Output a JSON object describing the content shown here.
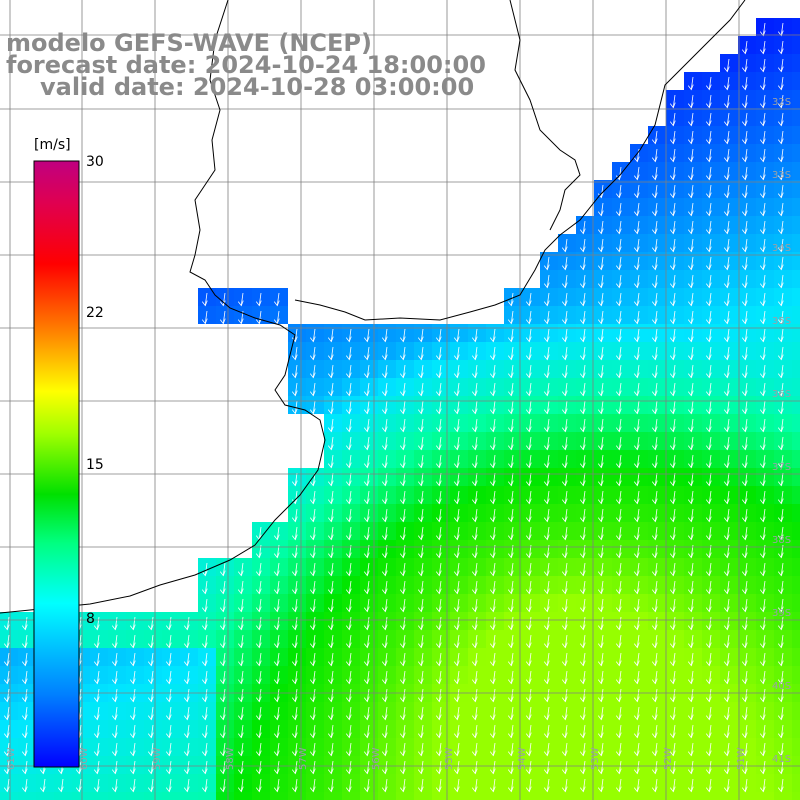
{
  "title": {
    "line1": "modelo GEFS-WAVE (NCEP)",
    "line2": "forecast date: 2024-10-24 18:00:00",
    "line3": "valid date: 2024-10-28 03:00:00"
  },
  "colorbar": {
    "unit": "[m/s]",
    "ticks": [
      "30",
      "22",
      "15",
      "8"
    ],
    "range": [
      0,
      30
    ],
    "stops": [
      "#0000ff",
      "#00a0ff",
      "#00ffff",
      "#00ff80",
      "#00ff00",
      "#80ff00",
      "#ffff00",
      "#ff8000",
      "#ff0000",
      "#e00060",
      "#c00080"
    ]
  },
  "grid_labels": {
    "longitudes": [
      "61W",
      "60W",
      "59W",
      "58W",
      "57W",
      "56W",
      "55W",
      "54W",
      "53W",
      "52W",
      "51W",
      "50W"
    ],
    "latitudes": [
      "32S",
      "33S",
      "34S",
      "35S",
      "36S",
      "37S",
      "38S",
      "39S",
      "40S",
      "41S"
    ]
  },
  "colors": {
    "land": "#ffffff",
    "coast": "#000000",
    "grid": "#7f7f7f",
    "title": "#8a8a8a",
    "arrows": "#ffffff"
  },
  "field": {
    "variable": "wind speed",
    "units": "m/s",
    "direction": "arrows pointing south-southwest (flow from the northeast)"
  }
}
